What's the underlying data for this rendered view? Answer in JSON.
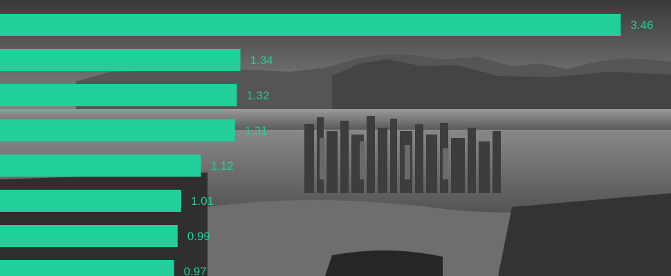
{
  "colors": {
    "bar": "#22cf9b",
    "label": "#22cf9b"
  },
  "chart_data": {
    "type": "bar",
    "orientation": "horizontal",
    "values": [
      3.46,
      1.34,
      1.32,
      1.31,
      1.12,
      1.01,
      0.99,
      0.97
    ],
    "labels": [
      "3.46",
      "1.34",
      "1.32",
      "1.31",
      "1.12",
      "1.01",
      "0.99",
      "0.97"
    ],
    "xlim": [
      0,
      3.74
    ],
    "grid": false,
    "legend": "none"
  }
}
